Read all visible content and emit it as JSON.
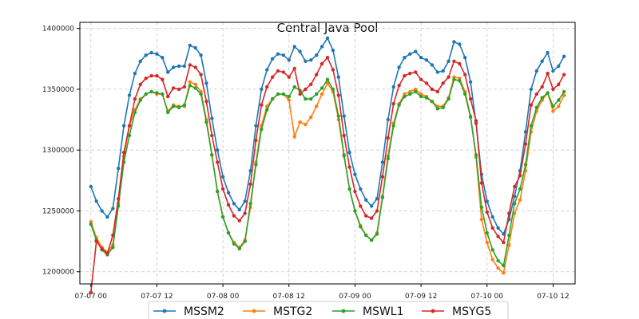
{
  "chart_data": {
    "type": "line",
    "title": "Central Java Pool",
    "xlabel": "",
    "ylabel": "",
    "x_start": "2024-07-07 00:00",
    "x_step_hours": 1,
    "xlim": [
      "07-06 22",
      "07-10 16"
    ],
    "ylim": [
      1190000,
      1405000
    ],
    "x_ticks": [
      "07-07 00",
      "07-07 12",
      "07-08 00",
      "07-08 12",
      "07-09 00",
      "07-09 12",
      "07-10 00",
      "07-10 12"
    ],
    "y_ticks": [
      1200000,
      1250000,
      1300000,
      1350000,
      1400000
    ],
    "y_tick_labels": [
      "1200000",
      "1250000",
      "1300000",
      "1350000",
      "1400000"
    ],
    "grid": true,
    "legend_position": "bottom-center",
    "series": [
      {
        "name": "MSSM2",
        "color": "#1f77b4",
        "values": [
          1270000,
          1258000,
          1250000,
          1245000,
          1252000,
          1285000,
          1320000,
          1345000,
          1363000,
          1373000,
          1378000,
          1380000,
          1379000,
          1376000,
          1364000,
          1368000,
          1369000,
          1369000,
          1386000,
          1384000,
          1378000,
          1355000,
          1326000,
          1300000,
          1278000,
          1265000,
          1256000,
          1251000,
          1258000,
          1283000,
          1320000,
          1350000,
          1366000,
          1375000,
          1379000,
          1378000,
          1374000,
          1385000,
          1381000,
          1373000,
          1374000,
          1378000,
          1385000,
          1392000,
          1382000,
          1360000,
          1328000,
          1298000,
          1280000,
          1268000,
          1259000,
          1254000,
          1260000,
          1290000,
          1325000,
          1352000,
          1368000,
          1376000,
          1379000,
          1381000,
          1376000,
          1374000,
          1370000,
          1364000,
          1365000,
          1373000,
          1389000,
          1387000,
          1376000,
          1356000,
          1322000,
          1280000,
          1258000,
          1245000,
          1236000,
          1231000,
          1243000,
          1262000,
          1283000,
          1315000,
          1350000,
          1365000,
          1373000,
          1380000,
          1365000,
          1369000,
          1377000
        ]
      },
      {
        "name": "MSTG2",
        "color": "#ff7f0e",
        "values": [
          1241000,
          1228000,
          1220000,
          1216000,
          1222000,
          1256000,
          1295000,
          1320000,
          1333000,
          1342000,
          1346000,
          1348000,
          1346000,
          1346000,
          1332000,
          1337000,
          1336000,
          1336000,
          1356000,
          1354000,
          1348000,
          1325000,
          1296000,
          1266000,
          1245000,
          1232000,
          1224000,
          1220000,
          1226000,
          1253000,
          1290000,
          1320000,
          1336000,
          1342000,
          1346000,
          1346000,
          1341000,
          1311000,
          1323000,
          1321000,
          1327000,
          1336000,
          1346000,
          1355000,
          1348000,
          1325000,
          1295000,
          1268000,
          1250000,
          1238000,
          1230000,
          1226000,
          1232000,
          1262000,
          1295000,
          1322000,
          1338000,
          1346000,
          1348000,
          1350000,
          1346000,
          1344000,
          1340000,
          1336000,
          1336000,
          1343000,
          1360000,
          1359000,
          1348000,
          1328000,
          1294000,
          1243000,
          1224000,
          1210000,
          1203000,
          1199000,
          1222000,
          1248000,
          1259000,
          1283000,
          1315000,
          1332000,
          1341000,
          1347000,
          1332000,
          1336000,
          1345000
        ]
      },
      {
        "name": "MSWL1",
        "color": "#2ca02c",
        "values": [
          1239000,
          1226000,
          1218000,
          1214000,
          1220000,
          1254000,
          1290000,
          1312000,
          1331000,
          1341000,
          1346000,
          1348000,
          1347000,
          1346000,
          1331000,
          1336000,
          1335000,
          1337000,
          1353000,
          1351000,
          1346000,
          1323000,
          1296000,
          1266000,
          1245000,
          1232000,
          1223000,
          1219000,
          1225000,
          1256000,
          1288000,
          1317000,
          1333000,
          1342000,
          1346000,
          1346000,
          1344000,
          1352000,
          1349000,
          1342000,
          1342000,
          1346000,
          1351000,
          1358000,
          1350000,
          1328000,
          1296000,
          1268000,
          1250000,
          1237000,
          1230000,
          1226000,
          1231000,
          1261000,
          1293000,
          1320000,
          1337000,
          1344000,
          1346000,
          1348000,
          1344000,
          1343000,
          1340000,
          1334000,
          1335000,
          1342000,
          1358000,
          1357000,
          1346000,
          1327000,
          1296000,
          1253000,
          1232000,
          1218000,
          1209000,
          1205000,
          1230000,
          1256000,
          1268000,
          1288000,
          1320000,
          1335000,
          1343000,
          1347000,
          1336000,
          1341000,
          1348000
        ]
      },
      {
        "name": "MSYG5",
        "color": "#d62728",
        "values": [
          1183000,
          1225000,
          1219000,
          1215000,
          1230000,
          1260000,
          1298000,
          1320000,
          1342000,
          1354000,
          1359000,
          1361000,
          1361000,
          1358000,
          1344000,
          1351000,
          1350000,
          1352000,
          1370000,
          1368000,
          1362000,
          1340000,
          1312000,
          1290000,
          1268000,
          1255000,
          1246000,
          1242000,
          1248000,
          1272000,
          1308000,
          1337000,
          1352000,
          1360000,
          1365000,
          1364000,
          1360000,
          1367000,
          1346000,
          1350000,
          1354000,
          1362000,
          1371000,
          1376000,
          1366000,
          1345000,
          1312000,
          1286000,
          1266000,
          1254000,
          1246000,
          1244000,
          1250000,
          1278000,
          1310000,
          1338000,
          1353000,
          1361000,
          1363000,
          1364000,
          1358000,
          1355000,
          1350000,
          1348000,
          1355000,
          1360000,
          1373000,
          1371000,
          1362000,
          1342000,
          1324000,
          1273000,
          1249000,
          1236000,
          1229000,
          1224000,
          1248000,
          1270000,
          1279000,
          1305000,
          1337000,
          1346000,
          1352000,
          1363000,
          1350000,
          1354000,
          1362000
        ]
      }
    ]
  }
}
